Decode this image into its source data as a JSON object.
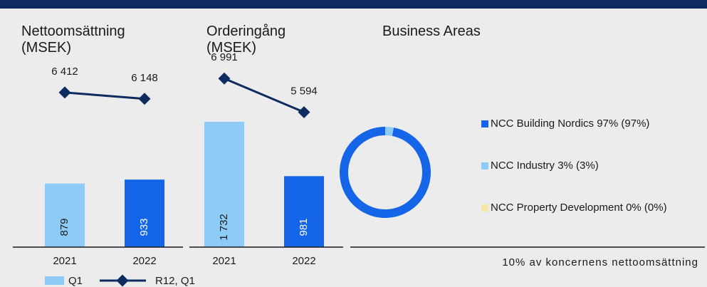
{
  "chart_data": [
    {
      "type": "combo",
      "title": "Nettoomsättning (MSEK)",
      "categories": [
        "2021",
        "2022"
      ],
      "series": [
        {
          "name": "Q1",
          "type": "bar",
          "colors": [
            "#8ecbf7",
            "#1565e8"
          ],
          "values": [
            879,
            933
          ]
        },
        {
          "name": "R12, Q1",
          "type": "line",
          "axis": "y2",
          "color": "#0d2b5e",
          "values": [
            6412,
            6148
          ],
          "value_labels": [
            "6 412",
            "6 148"
          ]
        }
      ],
      "ylim": [
        0,
        2500
      ],
      "y2lim": [
        0,
        7500
      ]
    },
    {
      "type": "combo",
      "title": "Orderingång (MSEK)",
      "categories": [
        "2021",
        "2022"
      ],
      "series": [
        {
          "type": "bar",
          "colors": [
            "#8ecbf7",
            "#1565e8"
          ],
          "values": [
            1732,
            981
          ],
          "value_labels": [
            "1 732",
            "981"
          ]
        },
        {
          "type": "line",
          "axis": "y2",
          "color": "#0d2b5e",
          "values": [
            6991,
            5594
          ],
          "value_labels": [
            "6 991",
            "5 594"
          ]
        }
      ],
      "ylim": [
        0,
        2500
      ],
      "y2lim": [
        0,
        7500
      ]
    },
    {
      "type": "donut",
      "title": "Business Areas",
      "labels": [
        "NCC Building Nordics 97% (97%)",
        "NCC Industry 3% (3%)",
        "NCC Property Development 0% (0%)"
      ],
      "values": [
        97,
        3,
        0
      ],
      "colors": [
        "#1565e8",
        "#8ecbf7",
        "#f5e6a8"
      ],
      "note": "10% av koncernens nettoomsättning"
    }
  ]
}
